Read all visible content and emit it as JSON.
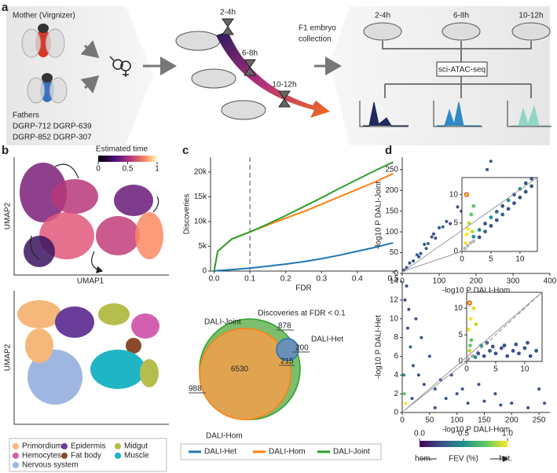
{
  "panel_labels": [
    "a",
    "b",
    "c",
    "d"
  ],
  "panel_a": {
    "mother": "Mother (Virgnizer)",
    "fathers": "Fathers",
    "father_lines": [
      "DGRP-712 DGRP-639",
      "DGRP-852 DGRP-307"
    ],
    "timepoints": [
      "2-4h",
      "6-8h",
      "10-12h"
    ],
    "collection": [
      "F1 embryo",
      "collection"
    ],
    "stages": [
      "2-4h",
      "6-8h",
      "10-12h"
    ],
    "assay": "sci-ATAC-seq"
  },
  "panel_b": {
    "umap_x": "UMAP1",
    "umap_y": "UMAP2",
    "colorbar": {
      "title": "Estimated time",
      "ticks": [
        0,
        0.5,
        1
      ],
      "lim": [
        0,
        1
      ]
    },
    "legend": [
      {
        "name": "Primordium",
        "color": "#f5b87a"
      },
      {
        "name": "Epidermis",
        "color": "#6a3d9a"
      },
      {
        "name": "Midgut",
        "color": "#b5bd4c"
      },
      {
        "name": "Hemocytes",
        "color": "#d45fb0"
      },
      {
        "name": "Fat body",
        "color": "#8b4a2b"
      },
      {
        "name": "Muscle",
        "color": "#1fb5c4"
      },
      {
        "name": "Nervous system",
        "color": "#9fb6e0"
      }
    ]
  },
  "venn": {
    "title": "Discoveries at FDR < 0.1",
    "sets": [
      "DALI-Joint",
      "DALI-Het",
      "DALI-Hom"
    ],
    "regions": [
      878,
      6530,
      200,
      215,
      988
    ]
  },
  "fev_colorbar": {
    "title": "FEV (%)",
    "low": "hom.",
    "high": "het.",
    "lim": [
      0,
      1
    ],
    "ticks": [
      {
        "value": 0,
        "label": "0.0"
      },
      0.5,
      {
        "value": 1,
        "label": "1.0"
      }
    ]
  },
  "chart_data": [
    {
      "type": "line",
      "xlabel": "FDR",
      "ylabel": "Discoveries",
      "vline": 0.1,
      "x": [
        0,
        0.01,
        0.05,
        0.1,
        0.15,
        0.2,
        0.25,
        0.3,
        0.35,
        0.4,
        0.45,
        0.5
      ],
      "xlim": [
        -0.01,
        0.51
      ],
      "xticks": [
        {
          "value": 0,
          "label": "0.0"
        },
        0.1,
        0.2,
        0.3,
        0.4,
        0.5
      ],
      "ylim": [
        0,
        23000
      ],
      "yticks": [
        0,
        {
          "value": 5000,
          "label": "5k"
        },
        {
          "value": 10000,
          "label": "10k"
        },
        {
          "value": 15000,
          "label": "15k"
        },
        {
          "value": 20000,
          "label": "20k"
        }
      ],
      "series": [
        {
          "name": "DALI-Het",
          "color": "#1f77b4",
          "values": [
            0,
            100,
            300,
            600,
            1000,
            1400,
            1900,
            2500,
            3200,
            4000,
            4800,
            5700
          ]
        },
        {
          "name": "DALI-Hom",
          "color": "#ff7f0e",
          "values": [
            0,
            4000,
            6500,
            7900,
            9300,
            10700,
            12000,
            13500,
            15000,
            16500,
            18000,
            19700
          ]
        },
        {
          "name": "DALI-Joint",
          "color": "#2ca02c",
          "values": [
            0,
            4000,
            6500,
            7900,
            9500,
            11200,
            13000,
            14800,
            16700,
            18500,
            20300,
            22000
          ]
        }
      ]
    },
    {
      "type": "scatter",
      "xlabel": "-log10 P DALI-Hom",
      "ylabel": "-log10 P DALI-Joint",
      "xlim": [
        0,
        400
      ],
      "xticks": [
        0,
        100,
        200,
        300,
        400
      ],
      "ylim": [
        0,
        280
      ],
      "yticks": [
        0,
        50,
        100,
        150,
        200,
        250
      ],
      "x": [
        5,
        12,
        20,
        30,
        40,
        50,
        60,
        70,
        80,
        90,
        100,
        110,
        120,
        130,
        150,
        160,
        180,
        200,
        210,
        230,
        240,
        45,
        65,
        85
      ],
      "y": [
        8,
        14,
        25,
        30,
        45,
        48,
        70,
        72,
        88,
        85,
        110,
        112,
        125,
        120,
        160,
        150,
        190,
        210,
        205,
        250,
        270,
        40,
        60,
        95
      ],
      "colors": [
        "#3b528b",
        "#3b528b",
        "#3b528b",
        "#3b528b",
        "#31688e",
        "#3b528b",
        "#3b528b",
        "#31688e",
        "#3b528b",
        "#3b528b",
        "#3b528b",
        "#31688e",
        "#3b528b",
        "#3b528b",
        "#3b528b",
        "#3b528b",
        "#3b528b",
        "#3b528b",
        "#3b528b",
        "#3b528b",
        "#3b528b",
        "#3b528b",
        "#3b528b",
        "#3b528b"
      ]
    },
    {
      "type": "scatter",
      "xlim": [
        0,
        13
      ],
      "xticks": [
        0,
        5,
        10
      ],
      "ylim": [
        0,
        13
      ],
      "yticks": [
        0,
        5,
        10
      ],
      "x": [
        0.5,
        1,
        1.5,
        2,
        3,
        4,
        5,
        6,
        7,
        8,
        9,
        10,
        11,
        12,
        2,
        3,
        4,
        5,
        6,
        7,
        8,
        9,
        10,
        11,
        12,
        0.8,
        1.2,
        1.6,
        2,
        0.6,
        1,
        1.8,
        0.8
      ],
      "y": [
        0.5,
        1,
        1.5,
        1.8,
        2.5,
        3.5,
        4.5,
        5.5,
        6.5,
        7.5,
        8.5,
        9.5,
        10.5,
        11.5,
        2.6,
        3.8,
        4.9,
        6,
        7,
        8,
        9,
        10,
        11,
        12,
        12.8,
        3,
        5,
        6.5,
        8,
        1.5,
        4,
        3.5,
        10
      ],
      "colors": [
        "#bbbbbb",
        "#bbbbbb",
        "#bbbbbb",
        "#bbbbbb",
        "#3b528b",
        "#31688e",
        "#3b528b",
        "#3b528b",
        "#31688e",
        "#3b528b",
        "#3b528b",
        "#3b528b",
        "#3b528b",
        "#3b528b",
        "#21918c",
        "#21918c",
        "#3b528b",
        "#21918c",
        "#31688e",
        "#3b528b",
        "#21918c",
        "#3b528b",
        "#21918c",
        "#3b528b",
        "#3b528b",
        "#fde725",
        "#b5de2b",
        "#5ec962",
        "#5ec962",
        "#fde725",
        "#fde725",
        "#b5de2b",
        "#e8562a"
      ]
    },
    {
      "type": "scatter",
      "xlabel": "-log10 P DALI-Hom",
      "ylabel": "-log10 P DALI-Het",
      "xlim": [
        0,
        270
      ],
      "xticks": [
        0,
        50,
        100,
        150,
        200,
        250
      ],
      "ylim": [
        0,
        14
      ],
      "yticks": [
        0,
        2,
        4,
        6,
        8,
        10,
        12,
        14
      ],
      "x": [
        5,
        8,
        10,
        15,
        20,
        30,
        40,
        60,
        80,
        100,
        120,
        150,
        180,
        200,
        230,
        260,
        50,
        70,
        90,
        110,
        25,
        35,
        12,
        3,
        4,
        60,
        140,
        170,
        250,
        6,
        18
      ],
      "y": [
        12,
        13.5,
        9,
        7,
        5,
        4,
        3,
        2.5,
        1.5,
        2,
        1,
        1.2,
        0.8,
        1,
        0.5,
        1,
        6,
        3.5,
        4,
        2.5,
        10,
        8,
        11,
        4,
        2,
        0.5,
        3,
        2,
        2.5,
        1,
        1.5
      ],
      "colors": [
        "#3b528b",
        "#3b528b",
        "#3b528b",
        "#31688e",
        "#3b528b",
        "#3b528b",
        "#3b528b",
        "#3b528b",
        "#3b528b",
        "#3b528b",
        "#3b528b",
        "#3b528b",
        "#3b528b",
        "#3b528b",
        "#3b528b",
        "#3b528b",
        "#3b528b",
        "#3b528b",
        "#3b528b",
        "#3b528b",
        "#3b528b",
        "#3b528b",
        "#3b528b",
        "#21918c",
        "#5ec962",
        "#3b528b",
        "#3b528b",
        "#3b528b",
        "#3b528b",
        "#fde725",
        "#3b528b"
      ]
    },
    {
      "type": "scatter",
      "xlim": [
        0,
        13
      ],
      "xticks": [
        0,
        5,
        10
      ],
      "ylim": [
        0,
        13
      ],
      "yticks": [
        0,
        5,
        10
      ],
      "x": [
        0.3,
        0.5,
        0.8,
        1,
        1.5,
        2,
        3,
        4,
        5,
        6,
        7,
        8,
        9,
        10,
        11,
        12,
        2.5,
        3.5,
        4.5,
        6.5,
        8.5,
        10.5,
        0.4,
        0.7,
        1.2,
        0.6,
        1.6,
        0.5
      ],
      "y": [
        0.5,
        2,
        4,
        1,
        0.8,
        1.5,
        1,
        2,
        1.5,
        2.5,
        1,
        2,
        1.5,
        2.5,
        1,
        2,
        3,
        3.5,
        2.8,
        3,
        3.2,
        3.5,
        6,
        8,
        10,
        3,
        7,
        11
      ],
      "colors": [
        "#bbbbbb",
        "#b5de2b",
        "#5ec962",
        "#bbbbbb",
        "#21918c",
        "#3b528b",
        "#3b528b",
        "#3b528b",
        "#3b528b",
        "#3b528b",
        "#3b528b",
        "#3b528b",
        "#3b528b",
        "#3b528b",
        "#3b528b",
        "#3b528b",
        "#21918c",
        "#3b528b",
        "#3b528b",
        "#3b528b",
        "#3b528b",
        "#3b528b",
        "#fde725",
        "#fde725",
        "#e8d825",
        "#5ec962",
        "#b5de2b",
        "#e8562a"
      ]
    }
  ]
}
